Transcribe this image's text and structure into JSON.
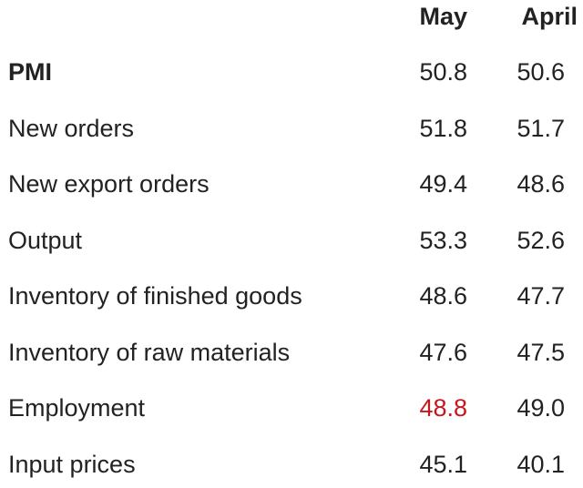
{
  "chart_data": {
    "type": "table",
    "columns": [
      "",
      "May",
      "April"
    ],
    "rows": [
      {
        "label": "PMI",
        "bold": true,
        "values": [
          "50.8",
          "50.6"
        ],
        "highlight": [
          false,
          false
        ]
      },
      {
        "label": "New orders",
        "bold": false,
        "values": [
          "51.8",
          "51.7"
        ],
        "highlight": [
          false,
          false
        ]
      },
      {
        "label": "New export orders",
        "bold": false,
        "values": [
          "49.4",
          "48.6"
        ],
        "highlight": [
          false,
          false
        ]
      },
      {
        "label": "Output",
        "bold": false,
        "values": [
          "53.3",
          "52.6"
        ],
        "highlight": [
          false,
          false
        ]
      },
      {
        "label": "Inventory of finished goods",
        "bold": false,
        "values": [
          "48.6",
          "47.7"
        ],
        "highlight": [
          false,
          false
        ]
      },
      {
        "label": "Inventory of raw materials",
        "bold": false,
        "values": [
          "47.6",
          "47.5"
        ],
        "highlight": [
          false,
          false
        ]
      },
      {
        "label": "Employment",
        "bold": false,
        "values": [
          "48.8",
          "49.0"
        ],
        "highlight": [
          true,
          false
        ]
      },
      {
        "label": "Input prices",
        "bold": false,
        "values": [
          "45.1",
          "40.1"
        ],
        "highlight": [
          false,
          false
        ]
      }
    ]
  },
  "colors": {
    "text": "#222222",
    "highlight": "#c8161d",
    "background": "#ffffff"
  }
}
